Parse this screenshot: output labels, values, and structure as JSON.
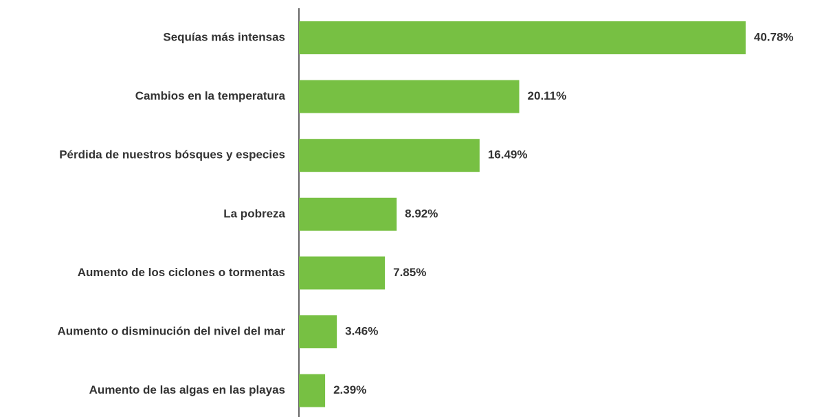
{
  "chart_data": {
    "type": "bar",
    "orientation": "horizontal",
    "categories": [
      "Sequías más intensas",
      "Cambios en la temperatura",
      "Pérdida de nuestros bósques y especies",
      "La pobreza",
      "Aumento de los ciclones o tormentas",
      "Aumento o disminución del nivel del mar",
      "Aumento de las algas en las playas"
    ],
    "values": [
      40.78,
      20.11,
      16.49,
      8.92,
      7.85,
      3.46,
      2.39
    ],
    "value_labels": [
      "40.78%",
      "20.11%",
      "16.49%",
      "8.92%",
      "7.85%",
      "3.46%",
      "2.39%"
    ],
    "color": "#77c043"
  }
}
